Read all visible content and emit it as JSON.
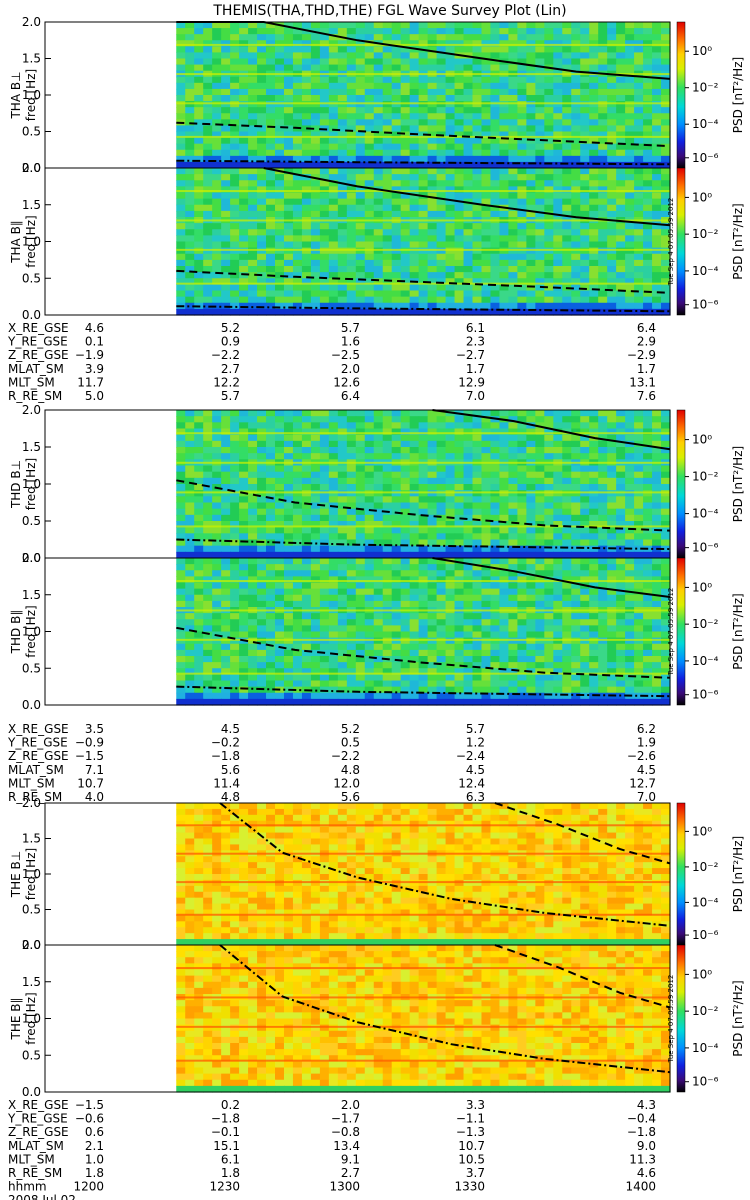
{
  "title": "THEMIS(THA,THD,THE) FGL Wave Survey Plot (Lin)",
  "colorbar": {
    "label_prefix": "PSD",
    "label_unit": "[nT²/Hz]",
    "ticks": [
      "10⁰",
      "10⁻²",
      "10⁻⁴",
      "10⁻⁶"
    ],
    "stamp": "Tue Sep  4 07:05:59 2012"
  },
  "chart_data": [
    {
      "type": "heatmap",
      "panel": "THA B⊥",
      "ylabel_probe": "THA B⊥",
      "ylabel_unit": "freq [Hz]",
      "ylim": [
        0,
        2
      ],
      "yticks": [
        "2.0",
        "1.5",
        "1.0",
        "0.5",
        "0.0"
      ],
      "data_start_fraction": 0.21,
      "level": "mid-green",
      "curves": [
        {
          "style": "solid",
          "x_frac": [
            0.21,
            0.35,
            0.5,
            0.7,
            0.85,
            1.0
          ],
          "y": [
            2.1,
            2.0,
            1.75,
            1.5,
            1.32,
            1.22
          ]
        },
        {
          "style": "dashed",
          "x_frac": [
            0.21,
            0.4,
            0.6,
            0.8,
            1.0
          ],
          "y": [
            0.62,
            0.55,
            0.46,
            0.38,
            0.3
          ]
        },
        {
          "style": "dash-dot",
          "x_frac": [
            0.21,
            0.5,
            1.0
          ],
          "y": [
            0.1,
            0.08,
            0.05
          ]
        }
      ]
    },
    {
      "type": "heatmap",
      "panel": "THA B∥",
      "ylabel_probe": "THA B∥",
      "ylabel_unit": "freq [Hz]",
      "ylim": [
        0,
        2
      ],
      "yticks": [
        "2.0",
        "1.5",
        "1.0",
        "0.5",
        "0.0"
      ],
      "data_start_fraction": 0.21,
      "level": "mid-green",
      "curves": [
        {
          "style": "solid",
          "x_frac": [
            0.35,
            0.5,
            0.7,
            0.85,
            1.0
          ],
          "y": [
            2.0,
            1.75,
            1.5,
            1.33,
            1.22
          ]
        },
        {
          "style": "dashed",
          "x_frac": [
            0.21,
            0.4,
            0.6,
            0.8,
            1.0
          ],
          "y": [
            0.6,
            0.52,
            0.45,
            0.38,
            0.3
          ]
        },
        {
          "style": "dash-dot",
          "x_frac": [
            0.21,
            0.5,
            1.0
          ],
          "y": [
            0.12,
            0.09,
            0.05
          ]
        }
      ]
    },
    {
      "type": "heatmap",
      "panel": "THD B⊥",
      "ylabel_probe": "THD B⊥",
      "ylabel_unit": "freq [Hz]",
      "ylim": [
        0,
        2
      ],
      "yticks": [
        "2.0",
        "1.5",
        "1.0",
        "0.5",
        "0.0"
      ],
      "data_start_fraction": 0.21,
      "level": "mid-green",
      "curves": [
        {
          "style": "solid",
          "x_frac": [
            0.62,
            0.75,
            0.88,
            1.0
          ],
          "y": [
            2.05,
            1.85,
            1.62,
            1.47
          ]
        },
        {
          "style": "dashed",
          "x_frac": [
            0.21,
            0.4,
            0.6,
            0.8,
            1.0
          ],
          "y": [
            1.05,
            0.75,
            0.58,
            0.44,
            0.37
          ]
        },
        {
          "style": "dash-dot",
          "x_frac": [
            0.21,
            0.5,
            1.0
          ],
          "y": [
            0.25,
            0.18,
            0.12
          ]
        }
      ]
    },
    {
      "type": "heatmap",
      "panel": "THD B∥",
      "ylabel_probe": "THD B∥",
      "ylabel_unit": "freq [Hz]",
      "ylim": [
        0,
        2
      ],
      "yticks": [
        "2.0",
        "1.5",
        "1.0",
        "0.5",
        "0.0"
      ],
      "data_start_fraction": 0.21,
      "level": "mid-green",
      "curves": [
        {
          "style": "solid",
          "x_frac": [
            0.62,
            0.75,
            0.88,
            1.0
          ],
          "y": [
            2.05,
            1.82,
            1.6,
            1.47
          ]
        },
        {
          "style": "dashed",
          "x_frac": [
            0.21,
            0.4,
            0.6,
            0.8,
            1.0
          ],
          "y": [
            1.05,
            0.75,
            0.58,
            0.44,
            0.37
          ]
        },
        {
          "style": "dash-dot",
          "x_frac": [
            0.21,
            0.5,
            1.0
          ],
          "y": [
            0.25,
            0.18,
            0.12
          ]
        }
      ]
    },
    {
      "type": "heatmap",
      "panel": "THE B⊥",
      "ylabel_probe": "THE B⊥",
      "ylabel_unit": "freq [Hz]",
      "ylim": [
        0,
        2
      ],
      "yticks": [
        "2.0",
        "1.5",
        "1.0",
        "0.5",
        "0.0"
      ],
      "data_start_fraction": 0.21,
      "level": "high-yellow",
      "curves": [
        {
          "style": "dash-dot",
          "x_frac": [
            0.28,
            0.38,
            0.5,
            0.65,
            0.8,
            1.0
          ],
          "y": [
            2.05,
            1.3,
            0.95,
            0.65,
            0.45,
            0.27
          ]
        },
        {
          "style": "dashed",
          "x_frac": [
            0.72,
            0.82,
            0.92,
            1.0
          ],
          "y": [
            2.05,
            1.7,
            1.35,
            1.15
          ]
        }
      ]
    },
    {
      "type": "heatmap",
      "panel": "THE B∥",
      "ylabel_probe": "THE B∥",
      "ylabel_unit": "freq [Hz]",
      "ylim": [
        0,
        2
      ],
      "yticks": [
        "2.0",
        "1.5",
        "1.0",
        "0.5",
        "0.0"
      ],
      "data_start_fraction": 0.21,
      "level": "high-yellow",
      "curves": [
        {
          "style": "dash-dot",
          "x_frac": [
            0.28,
            0.38,
            0.5,
            0.65,
            0.8,
            1.0
          ],
          "y": [
            2.05,
            1.3,
            0.95,
            0.65,
            0.45,
            0.27
          ]
        },
        {
          "style": "dashed",
          "x_frac": [
            0.72,
            0.82,
            0.92,
            1.0
          ],
          "y": [
            2.05,
            1.7,
            1.35,
            1.15
          ]
        }
      ]
    }
  ],
  "ephemeris_blocks": [
    {
      "rows": [
        {
          "label": "X_RE_GSE",
          "values": [
            "4.6",
            "5.2",
            "5.7",
            "6.1",
            "6.4"
          ]
        },
        {
          "label": "Y_RE_GSE",
          "values": [
            "0.1",
            "0.9",
            "1.6",
            "2.3",
            "2.9"
          ]
        },
        {
          "label": "Z_RE_GSE",
          "values": [
            "−1.9",
            "−2.2",
            "−2.5",
            "−2.7",
            "−2.9"
          ]
        },
        {
          "label": "MLAT_SM",
          "values": [
            "3.9",
            "2.7",
            "2.0",
            "1.7",
            "1.7"
          ]
        },
        {
          "label": "MLT_SM",
          "values": [
            "11.7",
            "12.2",
            "12.6",
            "12.9",
            "13.1"
          ]
        },
        {
          "label": "R_RE_SM",
          "values": [
            "5.0",
            "5.7",
            "6.4",
            "7.0",
            "7.6"
          ]
        }
      ]
    },
    {
      "rows": [
        {
          "label": "X_RE_GSE",
          "values": [
            "3.5",
            "4.5",
            "5.2",
            "5.7",
            "6.2"
          ]
        },
        {
          "label": "Y_RE_GSE",
          "values": [
            "−0.9",
            "−0.2",
            "0.5",
            "1.2",
            "1.9"
          ]
        },
        {
          "label": "Z_RE_GSE",
          "values": [
            "−1.5",
            "−1.8",
            "−2.2",
            "−2.4",
            "−2.6"
          ]
        },
        {
          "label": "MLAT_SM",
          "values": [
            "7.1",
            "5.6",
            "4.8",
            "4.5",
            "4.5"
          ]
        },
        {
          "label": "MLT_SM",
          "values": [
            "10.7",
            "11.4",
            "12.0",
            "12.4",
            "12.7"
          ]
        },
        {
          "label": "R_RE_SM",
          "values": [
            "4.0",
            "4.8",
            "5.6",
            "6.3",
            "7.0"
          ]
        }
      ]
    },
    {
      "rows": [
        {
          "label": "X_RE_GSE",
          "values": [
            "−1.5",
            "0.2",
            "2.0",
            "3.3",
            "4.3"
          ]
        },
        {
          "label": "Y_RE_GSE",
          "values": [
            "−0.6",
            "−1.8",
            "−1.7",
            "−1.1",
            "−0.4"
          ]
        },
        {
          "label": "Z_RE_GSE",
          "values": [
            "0.6",
            "−0.1",
            "−0.8",
            "−1.3",
            "−1.8"
          ]
        },
        {
          "label": "MLAT_SM",
          "values": [
            "2.1",
            "15.1",
            "13.4",
            "10.7",
            "9.0"
          ]
        },
        {
          "label": "MLT_SM",
          "values": [
            "1.0",
            "6.1",
            "9.1",
            "10.5",
            "11.3"
          ]
        },
        {
          "label": "R_RE_SM",
          "values": [
            "1.8",
            "1.8",
            "2.7",
            "3.7",
            "4.6"
          ]
        },
        {
          "label": "hhmm",
          "values": [
            "1200",
            "1230",
            "1300",
            "1330",
            "1400"
          ]
        }
      ],
      "date": "2008 Jul 02"
    }
  ]
}
